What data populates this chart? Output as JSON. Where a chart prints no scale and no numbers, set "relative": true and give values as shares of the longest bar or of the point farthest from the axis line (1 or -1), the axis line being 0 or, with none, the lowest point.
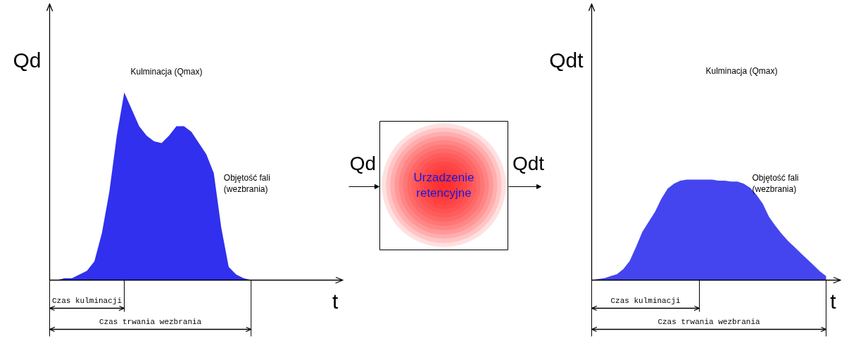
{
  "chart_data": [
    {
      "type": "area",
      "relative": true,
      "ylabel": "Qd",
      "xlabel": "t",
      "color": "#3030ee",
      "categories": [
        null,
        null,
        null,
        null,
        null,
        null,
        null,
        null,
        null,
        null,
        null,
        null,
        null,
        null,
        null,
        null,
        null,
        null,
        null,
        null,
        null,
        null,
        null,
        null,
        null,
        null,
        null,
        null,
        null,
        null,
        null,
        null,
        null,
        null,
        null,
        null,
        null,
        null,
        null,
        null
      ],
      "values": [
        0,
        0,
        0.01,
        0.01,
        0.03,
        0.05,
        0.1,
        0.25,
        0.47,
        0.77,
        1,
        0.91,
        0.82,
        0.77,
        0.74,
        0.73,
        0.77,
        0.82,
        0.82,
        0.79,
        0.73,
        0.67,
        0.57,
        0.28,
        0.07,
        0.03,
        0.01,
        0,
        null,
        null,
        null,
        null,
        null,
        null,
        null,
        null,
        null,
        null,
        null,
        null
      ],
      "annotations": [
        "Kulminacja (Qmax)",
        "Objętość fali\n(wezbrania)",
        "Czas kulminacji",
        "Czas trwania wezbrania"
      ]
    },
    {
      "type": "other",
      "annotations": [
        "Qd",
        "Urzadzenie\nretencyjne",
        "Qdt"
      ]
    },
    {
      "type": "area",
      "relative": true,
      "ylabel": "Qdt",
      "xlabel": "t",
      "color": "#4545f0",
      "categories": [
        null,
        null,
        null,
        null,
        null,
        null,
        null,
        null,
        null,
        null,
        null,
        null,
        null,
        null,
        null,
        null,
        null,
        null,
        null,
        null,
        null,
        null,
        null,
        null,
        null,
        null,
        null,
        null,
        null,
        null,
        null,
        null,
        null,
        null,
        null,
        null,
        null,
        null,
        null,
        null
      ],
      "values": [
        0,
        0.01,
        0.02,
        0.04,
        0.06,
        0.11,
        0.19,
        0.33,
        0.48,
        0.58,
        0.68,
        0.81,
        0.91,
        0.96,
        0.99,
        1,
        1,
        1,
        1,
        1,
        0.99,
        0.99,
        0.98,
        0.98,
        0.96,
        0.92,
        0.85,
        0.76,
        0.63,
        0.54,
        0.46,
        0.39,
        0.33,
        0.27,
        0.21,
        0.15,
        0.09,
        0.04,
        null,
        null
      ],
      "annotations": [
        "Kulminacja (Qmax)",
        "Objętość fali\n(wezbrania)",
        "Czas kulminacji",
        "Czas trwania wezbrania"
      ]
    }
  ]
}
